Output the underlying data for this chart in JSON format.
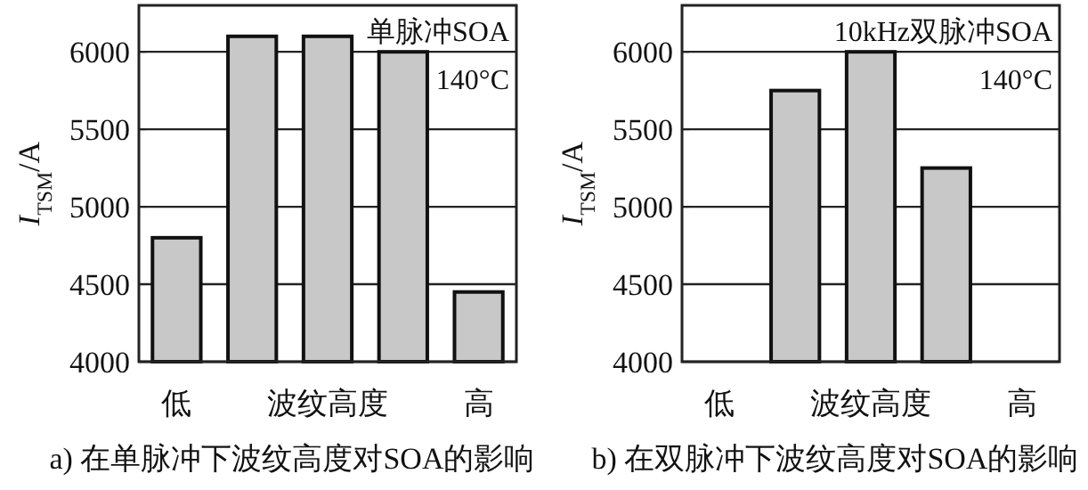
{
  "chart_data": [
    {
      "type": "bar",
      "title": "a) 在单脉冲下波纹高度对SOA的影响",
      "xlabel": "波纹高度",
      "ylabel": "I$_{TSM}$/A",
      "categories": [
        "低",
        null,
        null,
        null,
        "高"
      ],
      "series": [
        {
          "color": "#c8c8c8",
          "values": [
            4800,
            6100,
            6100,
            6000,
            4450
          ]
        }
      ],
      "ylim": [
        4000,
        6300
      ],
      "yticks": [
        4000,
        4500,
        5000,
        5500,
        6000
      ],
      "grid": "y",
      "annotations": [
        "单脉冲SOA",
        "140°C"
      ]
    },
    {
      "type": "bar",
      "title": "b) 在双脉冲下波纹高度对SOA的影响",
      "xlabel": "波纹高度",
      "ylabel": "I$_{TSM}$/A",
      "categories": [
        "低",
        null,
        null,
        null,
        "高"
      ],
      "series": [
        {
          "color": "#c8c8c8",
          "values": [
            null,
            5750,
            6000,
            5250,
            null
          ]
        }
      ],
      "ylim": [
        4000,
        6300
      ],
      "yticks": [
        4000,
        4500,
        5000,
        5500,
        6000
      ],
      "grid": "y",
      "annotations": [
        "10kHz双脉冲SOA",
        "140°C"
      ]
    }
  ]
}
